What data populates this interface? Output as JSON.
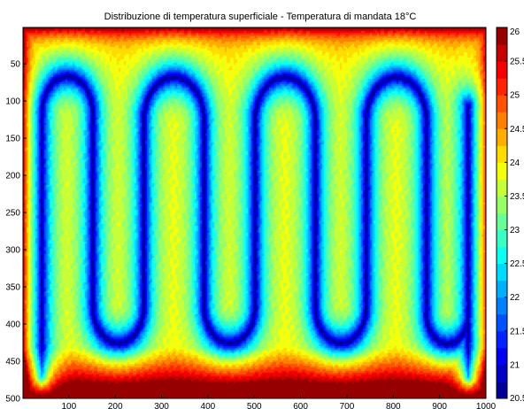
{
  "chart_data": {
    "type": "heatmap",
    "title": "Distribuzione di temperatura superficiale - Temperatura di mandata 18°C",
    "xlabel": "",
    "ylabel": "",
    "xlim": [
      1,
      1000
    ],
    "ylim": [
      1,
      500
    ],
    "y_reversed": true,
    "x_ticks": [
      100,
      200,
      300,
      400,
      500,
      600,
      700,
      800,
      900,
      1000
    ],
    "y_ticks": [
      50,
      100,
      150,
      200,
      250,
      300,
      350,
      400,
      450,
      500
    ],
    "colorbar": {
      "min": 20.5,
      "max": 26,
      "ticks": [
        20.5,
        21,
        21.5,
        22,
        22.5,
        23,
        23.5,
        24,
        24.5,
        25,
        25.5,
        26
      ],
      "tick_labels": [
        "20.5",
        "21",
        "21.5",
        "22",
        "22.5",
        "23",
        "23.5",
        "24",
        "24.5",
        "25",
        "25.5",
        "26"
      ],
      "colormap": "jet",
      "levels": 22
    },
    "pipe_layout": {
      "description_values": "serpentine supply pipe loops",
      "loop_centers_x": [
        50,
        160,
        270,
        400,
        510,
        640,
        750,
        880,
        980
      ],
      "pipe_temperature": 20.5,
      "between_pipes_temperature": 24,
      "border_temperature": 26
    },
    "grid": false,
    "legend": "colorbar-right"
  }
}
